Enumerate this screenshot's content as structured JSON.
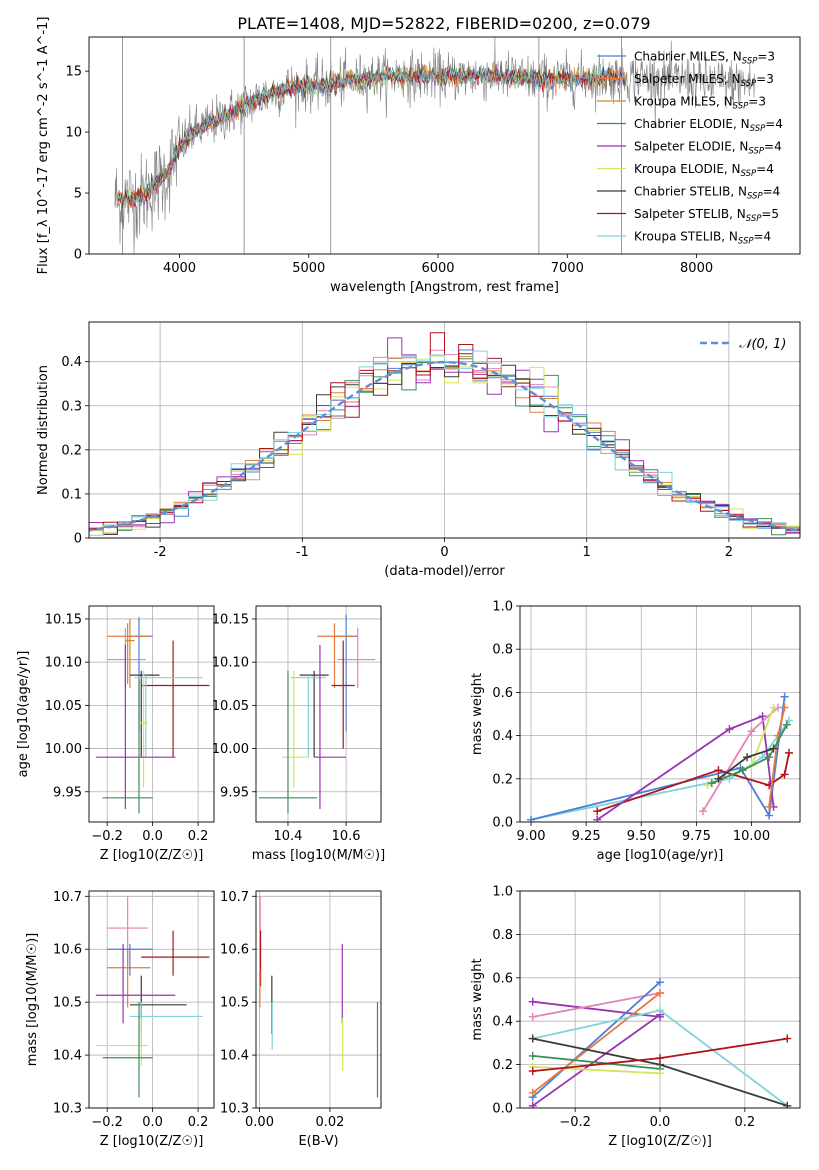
{
  "figure_title": "PLATE=1408, MJD=52822, FIBERID=0200, z=0.079",
  "colors": {
    "Chabrier MILES": "#4a7fd8",
    "Salpeter MILES": "#e77a3c",
    "Kroupa MILES": "#c98a2a",
    "Chabrier ELODIE": "#3f8d56",
    "Salpeter ELODIE": "#9a32b4",
    "Kroupa ELODIE": "#d7e35c",
    "Chabrier STELIB": "#3b3b3b",
    "Salpeter STELIB": "#b3121b",
    "Kroupa STELIB": "#7fd3db",
    "pink": "#e581b8",
    "observed": "#808080",
    "normal": "#5f8fd6"
  },
  "chart_data": [
    {
      "type": "line",
      "panel": "spectrum",
      "xlabel": "wavelength [Angstrom, rest frame]",
      "ylabel": "Flux [f_λ 10^-17 erg cm^-2 s^-1 A^-1]",
      "xlim": [
        3300,
        8800
      ],
      "ylim": [
        0,
        17.8
      ],
      "xticks": [
        4000,
        5000,
        6000,
        7000,
        8000
      ],
      "yticks": [
        0,
        5,
        10,
        15
      ],
      "grid": false,
      "legend_position": "right",
      "legend": [
        {
          "label": "Chabrier MILES, N_SSP=3",
          "color_key": "Chabrier MILES"
        },
        {
          "label": "Salpeter MILES, N_SSP=3",
          "color_key": "Salpeter MILES"
        },
        {
          "label": "Kroupa MILES, N_SSP=3",
          "color_key": "Kroupa MILES"
        },
        {
          "label": "Chabrier ELODIE, N_SSP=4",
          "color_key": "Chabrier ELODIE"
        },
        {
          "label": "Salpeter ELODIE, N_SSP=4",
          "color_key": "Salpeter ELODIE"
        },
        {
          "label": "Kroupa ELODIE, N_SSP=4",
          "color_key": "Kroupa ELODIE"
        },
        {
          "label": "Chabrier STELIB, N_SSP=4",
          "color_key": "Chabrier STELIB"
        },
        {
          "label": "Salpeter STELIB, N_SSP=5",
          "color_key": "Salpeter STELIB"
        },
        {
          "label": "Kroupa STELIB, N_SSP=4",
          "color_key": "Kroupa STELIB"
        }
      ],
      "continuum": {
        "wavelength": [
          3500,
          3700,
          3900,
          4000,
          4100,
          4300,
          4500,
          4700,
          4900,
          5100,
          5300,
          5500,
          5700,
          5900,
          6100,
          6300,
          6500,
          6700,
          6900,
          7100,
          7300,
          7500,
          7700,
          7900,
          8100,
          8300,
          8500
        ],
        "flux": [
          4.5,
          4.6,
          6.5,
          8.8,
          10.0,
          11.0,
          12.2,
          13.2,
          13.8,
          13.8,
          14.2,
          14.5,
          14.6,
          14.6,
          14.6,
          14.6,
          14.6,
          14.4,
          14.3,
          14.4,
          14.5,
          14.5,
          14.4,
          14.3,
          14.1,
          14.0,
          13.9
        ]
      }
    },
    {
      "type": "line",
      "panel": "residual histogram",
      "xlabel": "(data-model)/error",
      "ylabel": "Normed distribution",
      "xlim": [
        -2.5,
        2.5
      ],
      "ylim": [
        0,
        0.49
      ],
      "xticks": [
        -2,
        -1,
        0,
        1,
        2
      ],
      "yticks": [
        0.0,
        0.1,
        0.2,
        0.3,
        0.4
      ],
      "grid": true,
      "legend_position": "top-right",
      "legend": [
        {
          "label": "𝒩(0, 1)",
          "color_key": "normal"
        }
      ],
      "bin_width": 0.1
    },
    {
      "type": "scatter",
      "panel": "age vs Z",
      "xlabel": "Z [log10(Z/Z☉)]",
      "ylabel": "age [log10(age/yr)]",
      "xlim": [
        -0.28,
        0.27
      ],
      "ylim": [
        9.915,
        10.165
      ],
      "xticks": [
        -0.2,
        0.0,
        0.2
      ],
      "xticklabels": [
        "−0.2",
        "0.0",
        "0.2"
      ],
      "yticks": [
        9.95,
        10.0,
        10.05,
        10.1,
        10.15
      ],
      "yticklabels": [
        "9.95",
        "10.00",
        "10.05",
        "10.10",
        "10.15"
      ],
      "grid": true,
      "points": [
        {
          "c": "Chabrier MILES",
          "x": -0.06,
          "y": 10.13,
          "x_lo": -0.1,
          "x_hi": 0.0,
          "y_lo": 10.02,
          "y_hi": 10.152
        },
        {
          "c": "Salpeter MILES",
          "x": -0.11,
          "y": 10.13,
          "x_lo": -0.2,
          "x_hi": -0.01,
          "y_lo": 10.075,
          "y_hi": 10.145
        },
        {
          "c": "Kroupa MILES",
          "x": -0.1,
          "y": 10.125,
          "x_lo": -0.12,
          "x_hi": -0.08,
          "y_lo": 10.07,
          "y_hi": 10.15
        },
        {
          "c": "pink",
          "x": -0.12,
          "y": 10.103,
          "x_lo": -0.2,
          "x_hi": -0.03,
          "y_lo": 10.07,
          "y_hi": 10.14
        },
        {
          "c": "Salpeter STELIB",
          "x": 0.09,
          "y": 10.073,
          "x_lo": -0.05,
          "x_hi": 0.25,
          "y_lo": 9.99,
          "y_hi": 10.125
        },
        {
          "c": "Chabrier STELIB",
          "x": -0.05,
          "y": 10.085,
          "x_lo": -0.1,
          "x_hi": 0.03,
          "y_lo": 9.99,
          "y_hi": 10.09
        },
        {
          "c": "Kroupa STELIB",
          "x": -0.03,
          "y": 10.082,
          "x_lo": -0.08,
          "x_hi": 0.22,
          "y_lo": 9.99,
          "y_hi": 10.085
        },
        {
          "c": "Kroupa ELODIE",
          "x": -0.04,
          "y": 10.03,
          "x_lo": -0.06,
          "x_hi": -0.02,
          "y_lo": 9.955,
          "y_hi": 10.09
        },
        {
          "c": "Salpeter ELODIE",
          "x": -0.12,
          "y": 9.99,
          "x_lo": -0.25,
          "x_hi": 0.1,
          "y_lo": 9.93,
          "y_hi": 10.12
        },
        {
          "c": "Chabrier ELODIE",
          "x": -0.06,
          "y": 9.943,
          "x_lo": -0.22,
          "x_hi": 0.0,
          "y_lo": 9.925,
          "y_hi": 10.08
        }
      ]
    },
    {
      "type": "scatter",
      "panel": "age vs mass",
      "xlabel": "mass [log10(M/M☉)]",
      "ylabel": "",
      "xlim": [
        10.29,
        10.72
      ],
      "ylim": [
        9.915,
        10.165
      ],
      "xticks": [
        10.4,
        10.6
      ],
      "xticklabels": [
        "10.4",
        "10.6"
      ],
      "yticks": [
        9.95,
        10.0,
        10.05,
        10.1,
        10.15
      ],
      "yticklabels": [
        "9.95",
        "10.00",
        "10.05",
        "10.10",
        "10.15"
      ],
      "grid": true,
      "points": [
        {
          "c": "Chabrier MILES",
          "x": 10.6,
          "y": 10.13,
          "x_lo": 10.56,
          "x_hi": 10.64,
          "y_lo": 10.02,
          "y_hi": 10.155
        },
        {
          "c": "Salpeter MILES",
          "x": 10.56,
          "y": 10.13,
          "x_lo": 10.5,
          "x_hi": 10.63,
          "y_lo": 10.07,
          "y_hi": 10.145
        },
        {
          "c": "pink",
          "x": 10.64,
          "y": 10.103,
          "x_lo": 10.57,
          "x_hi": 10.7,
          "y_lo": 10.07,
          "y_hi": 10.14
        },
        {
          "c": "Salpeter STELIB",
          "x": 10.59,
          "y": 10.073,
          "x_lo": 10.55,
          "x_hi": 10.63,
          "y_lo": 10.0,
          "y_hi": 10.125
        },
        {
          "c": "Chabrier STELIB",
          "x": 10.49,
          "y": 10.085,
          "x_lo": 10.44,
          "x_hi": 10.54,
          "y_lo": 9.99,
          "y_hi": 10.09
        },
        {
          "c": "Kroupa STELIB",
          "x": 10.47,
          "y": 10.082,
          "x_lo": 10.41,
          "x_hi": 10.53,
          "y_lo": 9.99,
          "y_hi": 10.085
        },
        {
          "c": "Kroupa ELODIE",
          "x": 10.42,
          "y": 9.99,
          "x_lo": 10.38,
          "x_hi": 10.47,
          "y_lo": 9.955,
          "y_hi": 10.09
        },
        {
          "c": "Salpeter ELODIE",
          "x": 10.51,
          "y": 9.99,
          "x_lo": 10.49,
          "x_hi": 10.6,
          "y_lo": 9.93,
          "y_hi": 10.12
        },
        {
          "c": "Chabrier ELODIE",
          "x": 10.4,
          "y": 9.943,
          "x_lo": 10.3,
          "x_hi": 10.5,
          "y_lo": 9.925,
          "y_hi": 10.09
        }
      ]
    },
    {
      "type": "line",
      "panel": "mass weight vs age",
      "xlabel": "age [log10(age/yr)]",
      "ylabel": "mass weight",
      "xlim": [
        8.95,
        10.22
      ],
      "ylim": [
        0,
        1.0
      ],
      "xticks": [
        9.0,
        9.25,
        9.5,
        9.75,
        10.0
      ],
      "xticklabels": [
        "9.00",
        "9.25",
        "9.50",
        "9.75",
        "10.00"
      ],
      "yticks": [
        0.0,
        0.2,
        0.4,
        0.6,
        0.8,
        1.0
      ],
      "yticklabels": [
        "0.0",
        "0.2",
        "0.4",
        "0.6",
        "0.8",
        "1.0"
      ],
      "grid": true,
      "series": [
        {
          "c": "Kroupa STELIB",
          "x": [
            9.0,
            9.9,
            10.05,
            10.17
          ],
          "y": [
            0.01,
            0.2,
            0.3,
            0.47
          ]
        },
        {
          "c": "Chabrier MILES",
          "x": [
            9.0,
            9.95,
            10.08,
            10.15
          ],
          "y": [
            0.01,
            0.25,
            0.03,
            0.58
          ]
        },
        {
          "c": "Salpeter STELIB",
          "x": [
            9.3,
            9.85,
            10.08,
            10.15,
            10.17
          ],
          "y": [
            0.05,
            0.24,
            0.17,
            0.22,
            0.32
          ]
        },
        {
          "c": "Salpeter ELODIE",
          "x": [
            9.3,
            9.9,
            10.05,
            10.1
          ],
          "y": [
            0.01,
            0.43,
            0.49,
            0.07
          ]
        },
        {
          "c": "pink",
          "x": [
            9.78,
            10.0,
            10.12
          ],
          "y": [
            0.05,
            0.42,
            0.53
          ]
        },
        {
          "c": "Kroupa ELODIE",
          "x": [
            9.8,
            10.0,
            10.1
          ],
          "y": [
            0.17,
            0.26,
            0.53
          ]
        },
        {
          "c": "Salpeter MILES",
          "x": [
            10.08,
            10.12,
            10.15
          ],
          "y": [
            0.07,
            0.4,
            0.53
          ]
        },
        {
          "c": "Chabrier ELODIE",
          "x": [
            9.82,
            9.96,
            10.08,
            10.16
          ],
          "y": [
            0.18,
            0.24,
            0.3,
            0.45
          ]
        },
        {
          "c": "Chabrier STELIB",
          "x": [
            9.85,
            9.98,
            10.1
          ],
          "y": [
            0.2,
            0.3,
            0.34
          ]
        }
      ]
    },
    {
      "type": "scatter",
      "panel": "mass vs Z",
      "xlabel": "Z [log10(Z/Z☉)]",
      "ylabel": "mass [log10(M/M☉)]",
      "xlim": [
        -0.28,
        0.27
      ],
      "ylim": [
        10.3,
        10.71
      ],
      "xticks": [
        -0.2,
        0.0,
        0.2
      ],
      "xticklabels": [
        "−0.2",
        "0.0",
        "0.2"
      ],
      "yticks": [
        10.3,
        10.4,
        10.5,
        10.6,
        10.7
      ],
      "yticklabels": [
        "10.3",
        "10.4",
        "10.5",
        "10.6",
        "10.7"
      ],
      "grid": true,
      "points": [
        {
          "c": "pink",
          "x": -0.11,
          "y": 10.64,
          "x_lo": -0.2,
          "x_hi": -0.02,
          "y_lo": 10.57,
          "y_hi": 10.7
        },
        {
          "c": "Salpeter MILES",
          "x": -0.11,
          "y": 10.565,
          "x_lo": -0.2,
          "x_hi": -0.01,
          "y_lo": 10.49,
          "y_hi": 10.6
        },
        {
          "c": "Chabrier MILES",
          "x": -0.1,
          "y": 10.6,
          "x_lo": -0.2,
          "x_hi": 0.0,
          "y_lo": 10.55,
          "y_hi": 10.61
        },
        {
          "c": "Salpeter STELIB",
          "x": 0.09,
          "y": 10.585,
          "x_lo": -0.05,
          "x_hi": 0.25,
          "y_lo": 10.55,
          "y_hi": 10.635
        },
        {
          "c": "Chabrier STELIB",
          "x": -0.05,
          "y": 10.495,
          "x_lo": -0.1,
          "x_hi": 0.15,
          "y_lo": 10.44,
          "y_hi": 10.55
        },
        {
          "c": "Salpeter ELODIE",
          "x": -0.13,
          "y": 10.513,
          "x_lo": -0.25,
          "x_hi": 0.1,
          "y_lo": 10.46,
          "y_hi": 10.61
        },
        {
          "c": "Kroupa STELIB",
          "x": -0.05,
          "y": 10.473,
          "x_lo": -0.1,
          "x_hi": 0.22,
          "y_lo": 10.42,
          "y_hi": 10.5
        },
        {
          "c": "Kroupa ELODIE",
          "x": -0.05,
          "y": 10.418,
          "x_lo": -0.25,
          "x_hi": -0.02,
          "y_lo": 10.38,
          "y_hi": 10.47
        },
        {
          "c": "Chabrier ELODIE",
          "x": -0.06,
          "y": 10.395,
          "x_lo": -0.22,
          "x_hi": 0.0,
          "y_lo": 10.32,
          "y_hi": 10.5
        }
      ]
    },
    {
      "type": "scatter",
      "panel": "mass vs E(B-V)",
      "xlabel": "E(B-V)",
      "ylabel": "",
      "xlim": [
        -0.001,
        0.0345
      ],
      "ylim": [
        10.3,
        10.71
      ],
      "xticks": [
        0.0,
        0.02
      ],
      "xticklabels": [
        "0.00",
        "0.02"
      ],
      "yticks": [
        10.3,
        10.4,
        10.5,
        10.6,
        10.7
      ],
      "yticklabels": [
        "10.3",
        "10.4",
        "10.5",
        "10.6",
        "10.7"
      ],
      "grid": true,
      "points": [
        {
          "c": "pink",
          "x": 0.0002,
          "y": 10.64,
          "y_lo": 10.57,
          "y_hi": 10.7
        },
        {
          "c": "Salpeter STELIB",
          "x": 0.0003,
          "y": 10.585,
          "y_lo": 10.53,
          "y_hi": 10.635
        },
        {
          "c": "Salpeter MILES",
          "x": 0.0001,
          "y": 10.52,
          "y_lo": 10.49,
          "y_hi": 10.56
        },
        {
          "c": "Chabrier STELIB",
          "x": 0.0035,
          "y": 10.495,
          "y_lo": 10.44,
          "y_hi": 10.55
        },
        {
          "c": "Kroupa STELIB",
          "x": 0.0036,
          "y": 10.473,
          "y_lo": 10.41,
          "y_hi": 10.5
        },
        {
          "c": "Salpeter ELODIE",
          "x": 0.0235,
          "y": 10.513,
          "y_lo": 10.46,
          "y_hi": 10.61
        },
        {
          "c": "Kroupa ELODIE",
          "x": 0.0236,
          "y": 10.418,
          "y_lo": 10.37,
          "y_hi": 10.47
        },
        {
          "c": "Chabrier ELODIE",
          "x": 0.0335,
          "y": 10.395,
          "y_lo": 10.32,
          "y_hi": 10.5
        }
      ]
    },
    {
      "type": "line",
      "panel": "mass weight vs Z",
      "xlabel": "Z [log10(Z/Z☉)]",
      "ylabel": "mass weight",
      "xlim": [
        -0.33,
        0.33
      ],
      "ylim": [
        0,
        1.0
      ],
      "xticks": [
        -0.2,
        0.0,
        0.2
      ],
      "xticklabels": [
        "−0.2",
        "0.0",
        "0.2"
      ],
      "yticks": [
        0.0,
        0.2,
        0.4,
        0.6,
        0.8,
        1.0
      ],
      "yticklabels": [
        "0.0",
        "0.2",
        "0.4",
        "0.6",
        "0.8",
        "1.0"
      ],
      "grid": true,
      "series": [
        {
          "c": "Salpeter ELODIE",
          "x": [
            -0.3,
            0.0
          ],
          "y": [
            0.49,
            0.42
          ]
        },
        {
          "c": "pink",
          "x": [
            -0.3,
            0.0
          ],
          "y": [
            0.42,
            0.53
          ]
        },
        {
          "c": "Chabrier MILES",
          "x": [
            -0.3,
            0.0
          ],
          "y": [
            0.05,
            0.58
          ]
        },
        {
          "c": "Salpeter MILES",
          "x": [
            -0.3,
            0.0
          ],
          "y": [
            0.07,
            0.53
          ]
        },
        {
          "c": "Salpeter ELODIE",
          "x": [
            -0.3,
            0.0
          ],
          "y": [
            0.01,
            0.43
          ]
        },
        {
          "c": "Kroupa STELIB",
          "x": [
            -0.3,
            0.0,
            0.3
          ],
          "y": [
            0.32,
            0.45,
            0.01
          ]
        },
        {
          "c": "Chabrier STELIB",
          "x": [
            -0.3,
            0.0,
            0.3
          ],
          "y": [
            0.32,
            0.2,
            0.01
          ]
        },
        {
          "c": "Chabrier ELODIE",
          "x": [
            -0.3,
            0.0
          ],
          "y": [
            0.24,
            0.18
          ]
        },
        {
          "c": "Kroupa ELODIE",
          "x": [
            -0.3,
            0.0
          ],
          "y": [
            0.19,
            0.16
          ]
        },
        {
          "c": "Salpeter STELIB",
          "x": [
            -0.3,
            0.0,
            0.3
          ],
          "y": [
            0.17,
            0.23,
            0.32
          ]
        }
      ]
    }
  ]
}
